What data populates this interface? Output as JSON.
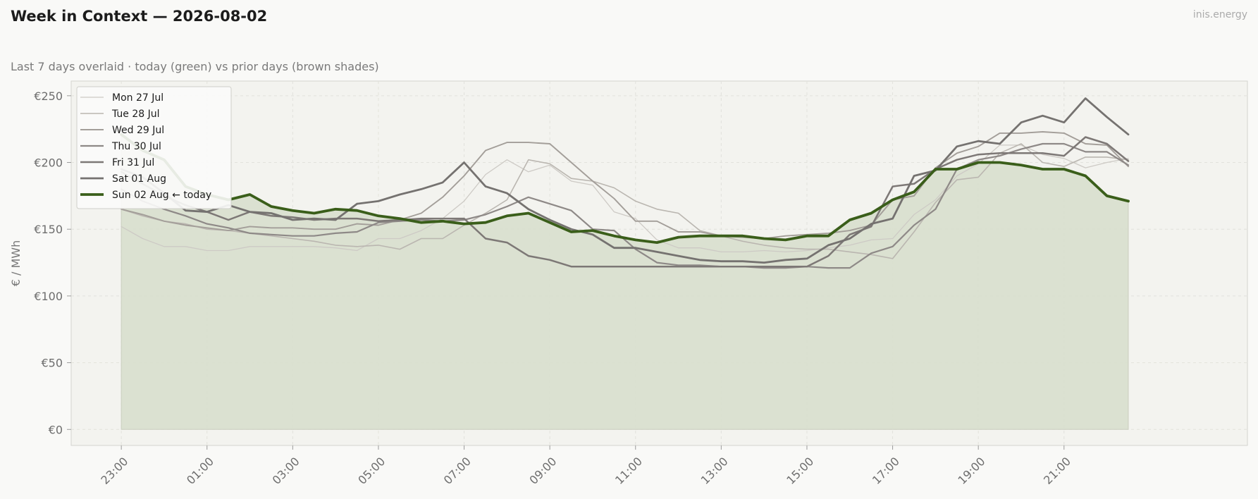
{
  "header": {
    "title": "Week in Context — 2026-08-02",
    "subtitle": "Last 7 days overlaid  ·  today (green) vs prior days (brown shades)",
    "brand": "inis.energy"
  },
  "colors": {
    "today": "#3a5e1a",
    "fill": "#d9dfcf",
    "plot_bg": "#f3f3ef",
    "grid": "#e2e2dc"
  },
  "chart_data": {
    "type": "line",
    "title": "Week in Context — 2026-08-02",
    "xlabel": "",
    "ylabel": "€ / MWh",
    "ylim": [
      -12,
      261
    ],
    "yticks": [
      0,
      50,
      100,
      150,
      200,
      250
    ],
    "ytick_labels": [
      "€0",
      "€50",
      "€100",
      "€150",
      "€200",
      "€250"
    ],
    "xlim": [
      -1.17,
      26.28
    ],
    "xticks": [
      0,
      2,
      4,
      6,
      8,
      10,
      12,
      14,
      16,
      18,
      20,
      22
    ],
    "xtick_labels": [
      "23:00",
      "01:00",
      "03:00",
      "05:00",
      "07:00",
      "09:00",
      "11:00",
      "13:00",
      "15:00",
      "17:00",
      "19:00",
      "21:00"
    ],
    "grid": true,
    "legend_position": "top-left",
    "x": [
      0,
      0.5,
      1,
      1.5,
      2,
      2.5,
      3,
      3.5,
      4,
      4.5,
      5,
      5.5,
      6,
      6.5,
      7,
      7.5,
      8,
      8.5,
      9,
      9.5,
      10,
      10.5,
      11,
      11.5,
      12,
      12.5,
      13,
      13.5,
      14,
      14.5,
      15,
      15.5,
      16,
      16.5,
      17,
      17.5,
      18,
      18.5,
      19,
      19.5,
      20,
      20.5,
      21,
      21.5,
      22,
      22.5,
      23,
      23.5
    ],
    "series": [
      {
        "name": "Mon 27 Jul",
        "color": "#cdcac5",
        "width": 1.3,
        "values": [
          152,
          143,
          137,
          137,
          134,
          134,
          137,
          137,
          137,
          137,
          136,
          134,
          143,
          143,
          149,
          158,
          171,
          191,
          202,
          193,
          198,
          186,
          183,
          163,
          158,
          142,
          136,
          136,
          133,
          133,
          134,
          133,
          134,
          136,
          138,
          142,
          143,
          161,
          172,
          190,
          199,
          213,
          213,
          206,
          203,
          196,
          200,
          203
        ]
      },
      {
        "name": "Tue 28 Jul",
        "color": "#bab6b0",
        "width": 1.6,
        "values": [
          165,
          160,
          156,
          154,
          150,
          149,
          147,
          145,
          143,
          141,
          138,
          137,
          138,
          135,
          143,
          143,
          153,
          162,
          172,
          202,
          199,
          188,
          186,
          181,
          171,
          165,
          162,
          149,
          145,
          141,
          138,
          136,
          135,
          135,
          133,
          131,
          128,
          148,
          170,
          187,
          189,
          207,
          214,
          200,
          197,
          204,
          204,
          202
        ]
      },
      {
        "name": "Wed 29 Jul",
        "color": "#a39e99",
        "width": 1.9,
        "values": [
          165,
          161,
          156,
          153,
          151,
          149,
          152,
          151,
          151,
          150,
          150,
          154,
          153,
          157,
          162,
          174,
          190,
          209,
          215,
          215,
          214,
          200,
          186,
          173,
          156,
          156,
          148,
          148,
          145,
          144,
          143,
          145,
          146,
          147,
          149,
          153,
          172,
          175,
          196,
          207,
          212,
          222,
          222,
          223,
          222,
          214,
          213,
          197
        ]
      },
      {
        "name": "Thu 30 Jul",
        "color": "#8e8987",
        "width": 2.2,
        "values": [
          180,
          171,
          165,
          160,
          154,
          151,
          147,
          146,
          145,
          145,
          147,
          148,
          155,
          156,
          157,
          156,
          157,
          161,
          167,
          174,
          169,
          164,
          150,
          149,
          135,
          125,
          123,
          123,
          122,
          122,
          121,
          121,
          122,
          121,
          121,
          132,
          137,
          153,
          165,
          195,
          202,
          205,
          210,
          214,
          214,
          208,
          208,
          198
        ]
      },
      {
        "name": "Fri 31 Jul",
        "color": "#7d7876",
        "width": 2.5,
        "values": [
          193,
          184,
          175,
          168,
          163,
          157,
          163,
          160,
          159,
          157,
          158,
          158,
          156,
          157,
          158,
          158,
          158,
          143,
          140,
          130,
          127,
          122,
          122,
          122,
          122,
          122,
          122,
          122,
          122,
          122,
          122,
          122,
          122,
          130,
          146,
          152,
          182,
          184,
          195,
          202,
          206,
          207,
          207,
          207,
          205,
          219,
          214,
          201
        ]
      },
      {
        "name": "Sat 01 Aug",
        "color": "#757270",
        "width": 2.8,
        "values": [
          195,
          189,
          177,
          164,
          163,
          168,
          163,
          162,
          157,
          158,
          157,
          169,
          171,
          176,
          180,
          185,
          200,
          182,
          177,
          165,
          157,
          150,
          146,
          136,
          136,
          133,
          130,
          127,
          126,
          126,
          125,
          127,
          128,
          138,
          143,
          154,
          158,
          190,
          194,
          212,
          216,
          214,
          230,
          235,
          230,
          248,
          234,
          221
        ]
      },
      {
        "name": "Sun 02 Aug",
        "color": "#3a5e1a",
        "width": 3.8,
        "today": true,
        "legend_suffix": "← today",
        "values": [
          221,
          209,
          202,
          182,
          176,
          172,
          176,
          167,
          164,
          162,
          165,
          164,
          160,
          158,
          155,
          156,
          154,
          155,
          160,
          162,
          155,
          148,
          149,
          145,
          142,
          140,
          144,
          145,
          145,
          145,
          143,
          142,
          145,
          145,
          157,
          162,
          172,
          178,
          195,
          195,
          200,
          200,
          198,
          195,
          195,
          190,
          175,
          171
        ]
      }
    ]
  }
}
